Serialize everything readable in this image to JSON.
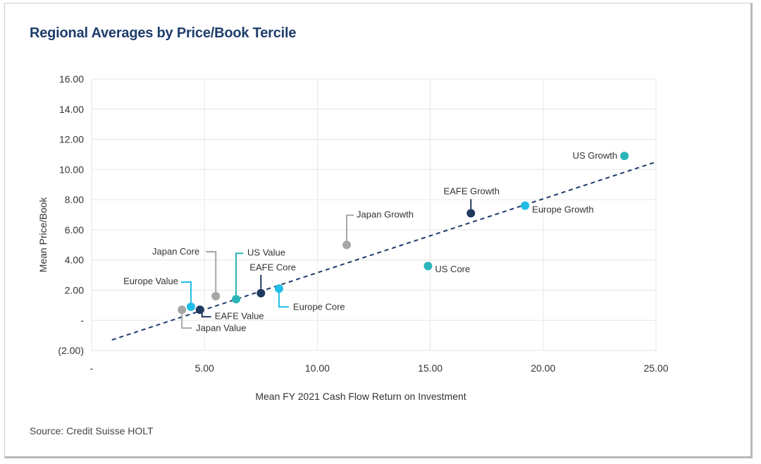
{
  "title": "Regional Averages by Price/Book Tercile",
  "source": "Source: Credit Suisse HOLT",
  "chart_data": {
    "type": "scatter",
    "title": "Regional Averages by Price/Book Tercile",
    "xlabel": "Mean FY 2021 Cash Flow Return on Investment",
    "ylabel": "Mean Price/Book",
    "xlim": [
      0,
      25
    ],
    "ylim": [
      -2,
      16
    ],
    "x_ticks": [
      "-",
      "5.00",
      "10.00",
      "15.00",
      "20.00",
      "25.00"
    ],
    "y_ticks": [
      "(2.00)",
      "-",
      "2.00",
      "4.00",
      "6.00",
      "8.00",
      "10.00",
      "12.00",
      "14.00",
      "16.00"
    ],
    "grid": true,
    "colors": {
      "navy": "#1f3a5f",
      "teal": "#2ab5b9",
      "cyan": "#1fbde8",
      "gray": "#a6a6a6",
      "trend": "#1f3a6b"
    },
    "points": [
      {
        "name": "US Growth",
        "x": 23.6,
        "y": 10.9,
        "color": "#2ab5b9"
      },
      {
        "name": "Europe Growth",
        "x": 19.2,
        "y": 7.6,
        "color": "#1fbde8"
      },
      {
        "name": "EAFE Growth",
        "x": 16.8,
        "y": 7.1,
        "color": "#1f3a5f"
      },
      {
        "name": "Japan Growth",
        "x": 11.3,
        "y": 5.0,
        "color": "#a6a6a6"
      },
      {
        "name": "US Core",
        "x": 14.9,
        "y": 3.6,
        "color": "#2ab5b9"
      },
      {
        "name": "Europe Core",
        "x": 8.3,
        "y": 2.1,
        "color": "#1fbde8"
      },
      {
        "name": "EAFE Core",
        "x": 7.5,
        "y": 1.8,
        "color": "#1f3a5f"
      },
      {
        "name": "US Value",
        "x": 6.4,
        "y": 1.4,
        "color": "#2ab5b9"
      },
      {
        "name": "Japan Core",
        "x": 5.5,
        "y": 1.6,
        "color": "#a6a6a6"
      },
      {
        "name": "Europe Value",
        "x": 4.4,
        "y": 0.9,
        "color": "#1fbde8"
      },
      {
        "name": "EAFE Value",
        "x": 4.8,
        "y": 0.7,
        "color": "#1f3a5f"
      },
      {
        "name": "Japan Value",
        "x": 4.0,
        "y": 0.7,
        "color": "#a6a6a6"
      }
    ],
    "trendline": {
      "style": "dashed",
      "from": [
        0.9,
        -1.3
      ],
      "to": [
        25,
        10.5
      ]
    }
  }
}
